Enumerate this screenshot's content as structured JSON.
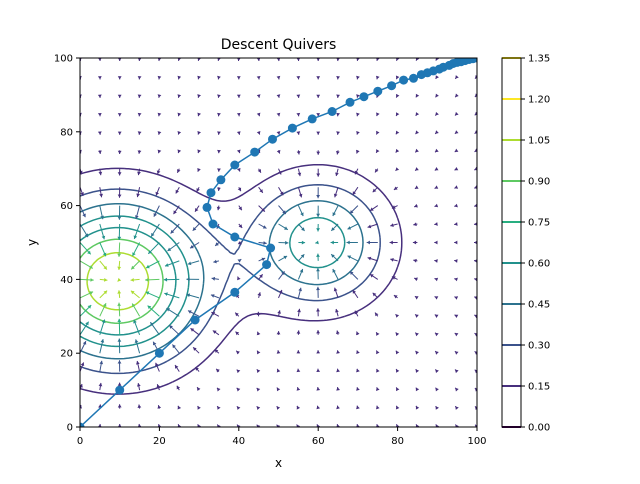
{
  "chart_data": {
    "type": "contour",
    "title": "Descent Quivers",
    "xlabel": "x",
    "ylabel": "y",
    "xlim": [
      0,
      100
    ],
    "ylim": [
      0,
      100
    ],
    "x_ticks": [
      "0",
      "20",
      "40",
      "60",
      "80",
      "100"
    ],
    "y_ticks": [
      "0",
      "20",
      "40",
      "60",
      "80",
      "100"
    ],
    "grid": false,
    "contour_levels": [
      0.0,
      0.15,
      0.3,
      0.45,
      0.6,
      0.75,
      0.9,
      1.05,
      1.2,
      1.35
    ],
    "colorbar_ticks": [
      "0.00",
      "0.15",
      "0.30",
      "0.45",
      "0.60",
      "0.75",
      "0.90",
      "1.05",
      "1.20",
      "1.35"
    ],
    "colormap": [
      "#440154",
      "#472f7d",
      "#3b528b",
      "#2c728e",
      "#21918c",
      "#28ae80",
      "#5ec962",
      "#addc30",
      "#fde725"
    ],
    "field_peaks": [
      {
        "x": 9.5,
        "y": 39.5,
        "amplitude": 1.2,
        "spread": 15
      },
      {
        "x": 60,
        "y": 50,
        "amplitude": 0.7,
        "spread": 12
      }
    ],
    "descent_path_color": "#1f77b4",
    "descent_path": [
      [
        0,
        0
      ],
      [
        10,
        10
      ],
      [
        20,
        20
      ],
      [
        29,
        29
      ],
      [
        39,
        36.5
      ],
      [
        47,
        44
      ],
      [
        48,
        48.5
      ],
      [
        39,
        51.5
      ],
      [
        33.5,
        55
      ],
      [
        32,
        59.5
      ],
      [
        33,
        63.5
      ],
      [
        35.5,
        67
      ],
      [
        39,
        71
      ],
      [
        44,
        74.5
      ],
      [
        48.5,
        78
      ],
      [
        53.5,
        81
      ],
      [
        58.5,
        83.5
      ],
      [
        63.5,
        85.5
      ],
      [
        68,
        88
      ],
      [
        71.5,
        89.5
      ],
      [
        75,
        91
      ],
      [
        78.5,
        92.5
      ],
      [
        81.5,
        94
      ],
      [
        84,
        94.5
      ],
      [
        86,
        95.5
      ],
      [
        87.5,
        96
      ],
      [
        89,
        96.5
      ],
      [
        90.5,
        97
      ],
      [
        91.5,
        97.5
      ],
      [
        93,
        98
      ],
      [
        94,
        98.5
      ],
      [
        95,
        98.8
      ],
      [
        96,
        99
      ],
      [
        97,
        99.3
      ],
      [
        98,
        99.6
      ],
      [
        99,
        99.8
      ],
      [
        100,
        100
      ]
    ]
  }
}
